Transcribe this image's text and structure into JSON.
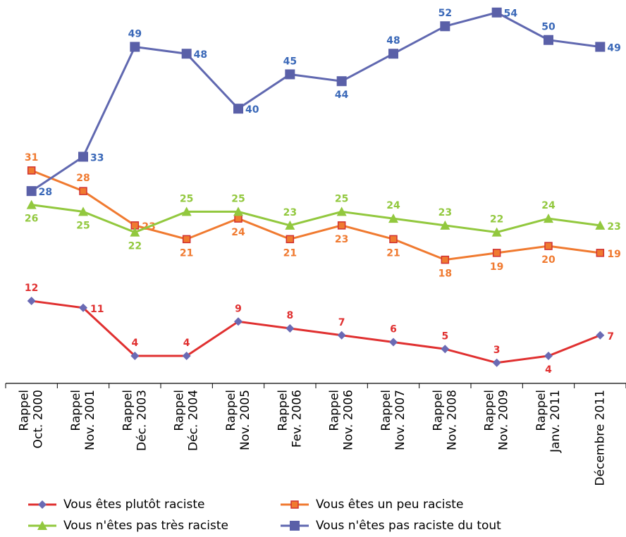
{
  "chart_data": {
    "type": "line",
    "categories": [
      [
        "Rappel",
        "Oct. 2000"
      ],
      [
        "Rappel",
        "Nov. 2001"
      ],
      [
        "Rappel",
        "Déc. 2003"
      ],
      [
        "Rappel",
        "Déc. 2004"
      ],
      [
        "Rappel",
        "Nov. 2005"
      ],
      [
        "Rappel",
        "Fev. 2006"
      ],
      [
        "Rappel",
        "Nov. 2006"
      ],
      [
        "Rappel",
        "Nov. 2007"
      ],
      [
        "Rappel",
        "Nov. 2008"
      ],
      [
        "Rappel",
        "Nov. 2009"
      ],
      [
        "Rappel",
        "Janv. 2011"
      ],
      [
        "Décembre 2011"
      ]
    ],
    "series": [
      {
        "name": "Vous êtes plutôt raciste",
        "color": "#e03030",
        "marker": "diamond",
        "marker_color": "#6a6ab4",
        "values": [
          12,
          11,
          4,
          4,
          9,
          8,
          7,
          6,
          5,
          3,
          4,
          7
        ]
      },
      {
        "name": "Vous êtes un peu raciste",
        "color": "#f07a30",
        "marker": "square",
        "marker_color": "#f07a30",
        "values": [
          31,
          28,
          23,
          21,
          24,
          21,
          23,
          21,
          18,
          19,
          20,
          19
        ]
      },
      {
        "name": "Vous n'êtes pas très raciste",
        "color": "#92c83e",
        "marker": "triangle",
        "marker_color": "#92c83e",
        "values": [
          26,
          25,
          22,
          25,
          25,
          23,
          25,
          24,
          23,
          22,
          24,
          23
        ]
      },
      {
        "name": "Vous n'êtes pas raciste du tout",
        "color": "#6068b0",
        "marker": "square",
        "marker_color": "#5a60a8",
        "values": [
          28,
          33,
          49,
          48,
          40,
          45,
          44,
          48,
          52,
          54,
          50,
          49
        ]
      }
    ],
    "label_colors": [
      "#e03030",
      "#f07a30",
      "#92c83e",
      "#3a68b8"
    ],
    "ylim": [
      0,
      55
    ]
  }
}
